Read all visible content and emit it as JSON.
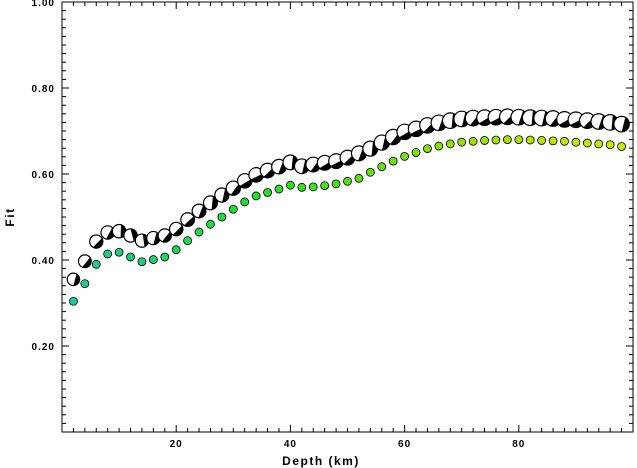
{
  "chart_data": {
    "type": "scatter",
    "xlabel": "Depth (km)",
    "ylabel": "Fit",
    "xlim": [
      0,
      100
    ],
    "ylim": [
      0,
      1
    ],
    "xticks_major": [
      20,
      40,
      60,
      80
    ],
    "yticks_major": [
      "0.20",
      "0.40",
      "0.60",
      "0.80",
      "1.00"
    ],
    "grid": false,
    "series": [
      {
        "marker": "focal-mechanism-beachball",
        "x": [
          2,
          4,
          6,
          8,
          10,
          12,
          14,
          16,
          18,
          20,
          22,
          24,
          26,
          28,
          30,
          32,
          34,
          36,
          38,
          40,
          42,
          44,
          46,
          48,
          50,
          52,
          54,
          56,
          58,
          60,
          62,
          64,
          66,
          68,
          70,
          72,
          74,
          76,
          78,
          80,
          82,
          84,
          86,
          88,
          90,
          92,
          94,
          96,
          98
        ],
        "y": [
          0.355,
          0.397,
          0.443,
          0.464,
          0.467,
          0.457,
          0.445,
          0.451,
          0.457,
          0.472,
          0.494,
          0.514,
          0.533,
          0.551,
          0.567,
          0.584,
          0.598,
          0.608,
          0.617,
          0.627,
          0.618,
          0.622,
          0.626,
          0.63,
          0.638,
          0.648,
          0.659,
          0.673,
          0.686,
          0.698,
          0.705,
          0.713,
          0.719,
          0.724,
          0.728,
          0.73,
          0.731,
          0.732,
          0.733,
          0.732,
          0.731,
          0.73,
          0.729,
          0.727,
          0.726,
          0.724,
          0.722,
          0.72,
          0.716
        ]
      },
      {
        "marker": "dot",
        "x": [
          2,
          4,
          6,
          8,
          10,
          12,
          14,
          16,
          18,
          20,
          22,
          24,
          26,
          28,
          30,
          32,
          34,
          36,
          38,
          40,
          42,
          44,
          46,
          48,
          50,
          52,
          54,
          56,
          58,
          60,
          62,
          64,
          66,
          68,
          70,
          72,
          74,
          76,
          78,
          80,
          82,
          84,
          86,
          88,
          90,
          92,
          94,
          96,
          98
        ],
        "y": [
          0.304,
          0.345,
          0.39,
          0.414,
          0.418,
          0.407,
          0.396,
          0.401,
          0.407,
          0.424,
          0.445,
          0.465,
          0.483,
          0.5,
          0.518,
          0.535,
          0.549,
          0.557,
          0.565,
          0.574,
          0.569,
          0.57,
          0.573,
          0.577,
          0.583,
          0.59,
          0.604,
          0.617,
          0.63,
          0.641,
          0.65,
          0.659,
          0.665,
          0.67,
          0.674,
          0.676,
          0.678,
          0.679,
          0.68,
          0.68,
          0.679,
          0.678,
          0.677,
          0.676,
          0.674,
          0.672,
          0.67,
          0.668,
          0.664
        ]
      }
    ]
  }
}
